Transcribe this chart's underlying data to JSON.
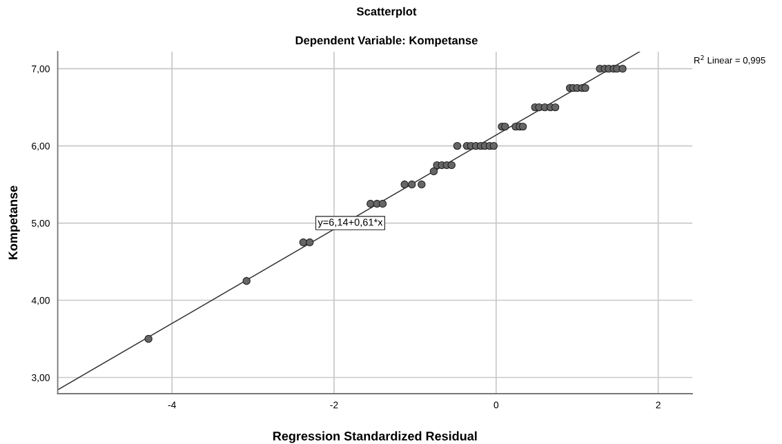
{
  "chart_data": {
    "type": "scatter",
    "title": "Scatterplot",
    "subtitle": "Dependent Variable: Kompetanse",
    "xlabel": "Regression Standardized Residual",
    "ylabel": "Kompetanse",
    "series": [
      {
        "color": "#666666",
        "marker": "circle",
        "x": [
          -4.29,
          -3.08,
          -2.38,
          -2.3,
          -1.55,
          -1.47,
          -1.4,
          -1.13,
          -1.04,
          -0.92,
          -0.77,
          -0.73,
          -0.67,
          -0.61,
          -0.55,
          -0.48,
          -0.36,
          -0.31,
          -0.25,
          -0.19,
          -0.14,
          -0.08,
          -0.03,
          0.07,
          0.11,
          0.24,
          0.29,
          0.33,
          0.48,
          0.53,
          0.6,
          0.67,
          0.73,
          0.91,
          0.95,
          1.0,
          1.06,
          1.1,
          1.28,
          1.34,
          1.39,
          1.45,
          1.49,
          1.56
        ],
        "values": [
          3.5,
          4.25,
          4.75,
          4.75,
          5.25,
          5.25,
          5.25,
          5.5,
          5.5,
          5.5,
          5.67,
          5.75,
          5.75,
          5.75,
          5.75,
          6.0,
          6.0,
          6.0,
          6.0,
          6.0,
          6.0,
          6.0,
          6.0,
          6.25,
          6.25,
          6.25,
          6.25,
          6.25,
          6.5,
          6.5,
          6.5,
          6.5,
          6.5,
          6.75,
          6.75,
          6.75,
          6.75,
          6.75,
          7.0,
          7.0,
          7.0,
          7.0,
          7.0,
          7.0
        ]
      },
      {
        "type": "line",
        "marker": "none",
        "color": "#333333",
        "x": [
          -5.41,
          1.77
        ],
        "values": [
          2.84,
          7.22
        ]
      }
    ],
    "xlim": [
      -5.41,
      2.42
    ],
    "ylim": [
      2.79,
      7.22
    ],
    "xticks": [
      {
        "value": -4,
        "label": "-4"
      },
      {
        "value": -2,
        "label": "-2"
      },
      {
        "value": 0,
        "label": "0"
      },
      {
        "value": 2,
        "label": "2"
      }
    ],
    "yticks": [
      {
        "value": 3,
        "label": "3,00"
      },
      {
        "value": 4,
        "label": "4,00"
      },
      {
        "value": 5,
        "label": "5,00"
      },
      {
        "value": 6,
        "label": "6,00"
      },
      {
        "value": 7,
        "label": "7,00"
      }
    ],
    "grid": true,
    "line_style": "solid",
    "legend": false,
    "annotations": [
      {
        "text": "y=6,14+0,61*x",
        "x": -1.8,
        "y": 5.0
      },
      "R$^{2}$ Linear = 0,995"
    ]
  }
}
